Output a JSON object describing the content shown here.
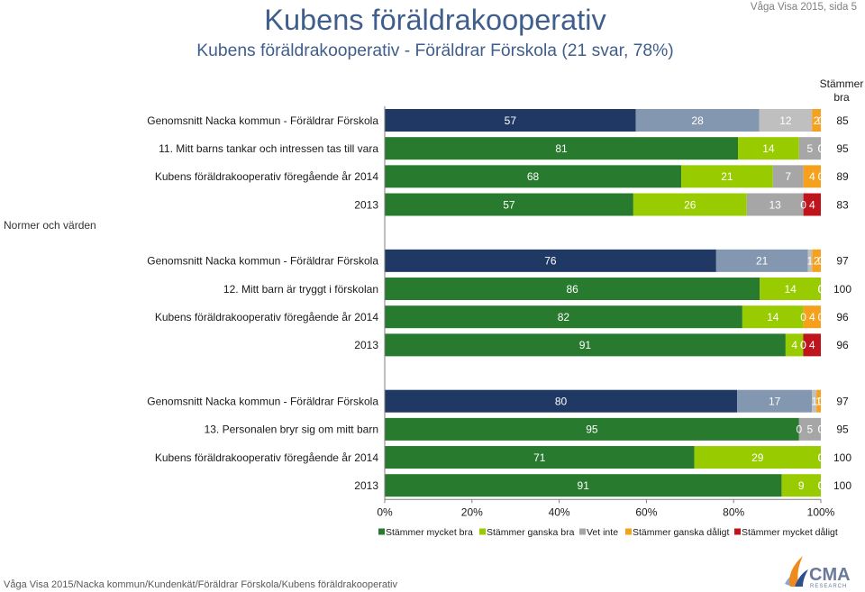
{
  "header": {
    "title": "Kubens föräldrakooperativ",
    "subtitle": "Kubens föräldrakooperativ - Föräldrar Förskola (21 svar, 78%)",
    "page_ref": "Våga Visa 2015, sida 5"
  },
  "footer": {
    "path": "Våga Visa 2015/Nacka kommun/Kundenkät/Föräldrar Förskola/Kubens föräldrakooperativ"
  },
  "logo": {
    "name": "CMA",
    "tagline": "RESEARCH",
    "colors": [
      "#F08A1C",
      "#2E4E8E",
      "#8FA6CF",
      "#6B7A99"
    ]
  },
  "colors": {
    "title": "#3F5E8C",
    "text": "#1A1A1A",
    "axis": "#7F7F7F",
    "segment_label": "#FFFFFF"
  },
  "chart_data": {
    "type": "bar",
    "orientation": "horizontal",
    "stacked": true,
    "grid": false,
    "legend_position": "bottom",
    "section_label": "Normer och värden",
    "summary_header": [
      "Stämmer",
      "bra"
    ],
    "xlim": [
      0,
      100
    ],
    "x_ticks": [
      0,
      20,
      40,
      60,
      80,
      100
    ],
    "x_tick_labels": [
      "0%",
      "20%",
      "40%",
      "60%",
      "80%",
      "100%"
    ],
    "legend": [
      {
        "label": "Stämmer mycket bra",
        "color": "#287A2E"
      },
      {
        "label": "Stämmer ganska bra",
        "color": "#99CC00"
      },
      {
        "label": "Vet inte",
        "color": "#A6A6A6"
      },
      {
        "label": "Stämmer ganska dåligt",
        "color": "#F5A11E"
      },
      {
        "label": "Stämmer mycket dåligt",
        "color": "#C0141C"
      }
    ],
    "groups": [
      {
        "rows": [
          {
            "label": "Genomsnitt Nacka kommun - Föräldrar Förskola",
            "values": [
              57,
              28,
              12,
              2,
              0
            ],
            "stammer_bra": 85,
            "colors": [
              "#1F3864",
              "#8497B0",
              "#BFBFBF",
              "#F5A11E",
              "#C0141C"
            ]
          },
          {
            "label": "11. Mitt barns tankar och intressen tas till vara",
            "values": [
              81,
              14,
              5,
              0,
              0
            ],
            "stammer_bra": 95,
            "colors": [
              "#287A2E",
              "#99CC00",
              "#A6A6A6",
              "#F5A11E",
              "#C0141C"
            ]
          },
          {
            "label": "Kubens föräldrakooperativ föregående år 2014",
            "values": [
              68,
              21,
              7,
              4,
              0
            ],
            "stammer_bra": 89,
            "colors": [
              "#287A2E",
              "#99CC00",
              "#A6A6A6",
              "#F5A11E",
              "#C0141C"
            ]
          },
          {
            "label": "2013",
            "values": [
              57,
              26,
              13,
              0,
              4
            ],
            "stammer_bra": 83,
            "colors": [
              "#287A2E",
              "#99CC00",
              "#A6A6A6",
              "#F5A11E",
              "#C0141C"
            ]
          }
        ]
      },
      {
        "rows": [
          {
            "label": "Genomsnitt Nacka kommun - Föräldrar Förskola",
            "values": [
              76,
              21,
              1,
              2,
              0
            ],
            "stammer_bra": 97,
            "colors": [
              "#1F3864",
              "#8497B0",
              "#BFBFBF",
              "#F5A11E",
              "#C0141C"
            ]
          },
          {
            "label": "12. Mitt barn är tryggt i förskolan",
            "values": [
              86,
              14,
              0,
              0,
              0
            ],
            "stammer_bra": 100,
            "colors": [
              "#287A2E",
              "#99CC00",
              "#A6A6A6",
              "#F5A11E",
              "#C0141C"
            ]
          },
          {
            "label": "Kubens föräldrakooperativ föregående år 2014",
            "values": [
              82,
              14,
              0,
              4,
              0
            ],
            "stammer_bra": 96,
            "colors": [
              "#287A2E",
              "#99CC00",
              "#A6A6A6",
              "#F5A11E",
              "#C0141C"
            ]
          },
          {
            "label": "2013",
            "values": [
              91,
              4,
              0,
              0,
              4
            ],
            "stammer_bra": 96,
            "colors": [
              "#287A2E",
              "#99CC00",
              "#A6A6A6",
              "#F5A11E",
              "#C0141C"
            ]
          }
        ]
      },
      {
        "rows": [
          {
            "label": "Genomsnitt Nacka kommun - Föräldrar Förskola",
            "values": [
              80,
              17,
              1,
              1,
              0
            ],
            "stammer_bra": 97,
            "colors": [
              "#1F3864",
              "#8497B0",
              "#BFBFBF",
              "#F5A11E",
              "#C0141C"
            ]
          },
          {
            "label": "13. Personalen bryr sig om mitt barn",
            "values": [
              95,
              0,
              5,
              0,
              0
            ],
            "stammer_bra": 95,
            "colors": [
              "#287A2E",
              "#99CC00",
              "#A6A6A6",
              "#F5A11E",
              "#C0141C"
            ]
          },
          {
            "label": "Kubens föräldrakooperativ föregående år 2014",
            "values": [
              71,
              29,
              0,
              0,
              0
            ],
            "stammer_bra": 100,
            "colors": [
              "#287A2E",
              "#99CC00",
              "#A6A6A6",
              "#F5A11E",
              "#C0141C"
            ]
          },
          {
            "label": "2013",
            "values": [
              91,
              9,
              0,
              0,
              0
            ],
            "stammer_bra": 100,
            "colors": [
              "#287A2E",
              "#99CC00",
              "#A6A6A6",
              "#F5A11E",
              "#C0141C"
            ]
          }
        ]
      }
    ]
  }
}
